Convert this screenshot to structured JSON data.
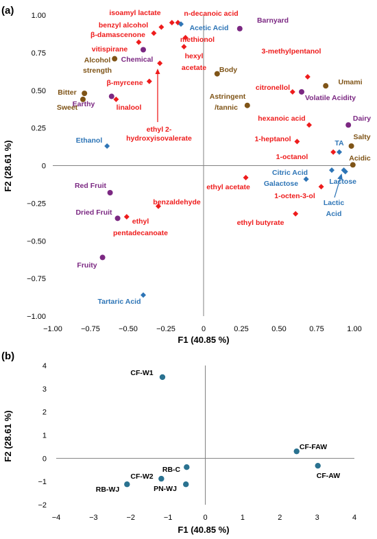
{
  "colors": {
    "compound": "#ee1c1c",
    "chemical": "#2e75b6",
    "aroma": "#7b2882",
    "taste": "#7f5417",
    "sample": "#2a7290",
    "axis": "#808080"
  },
  "chart_data": [
    {
      "type": "scatter",
      "panel": "(a)",
      "xlabel": "F1 (40.85 %)",
      "ylabel": "F2 (28.61 %)",
      "xlim": [
        -1,
        1
      ],
      "ylim": [
        -1,
        1
      ],
      "xticks": [
        "−1.00",
        "−0.75",
        "−0.50",
        "−0.25",
        "0",
        "0.25",
        "0.50",
        "0.75",
        "1.00"
      ],
      "yticks": [
        "1.00",
        "0.75",
        "0.50",
        "0.25",
        "0",
        "−0.25",
        "−0.50",
        "−0.75",
        "−1.00"
      ],
      "grid": false,
      "points": [
        {
          "label": "isoamyl lactate",
          "x": -0.21,
          "y": 0.95,
          "group": "compound",
          "marker": "diamond",
          "color": "#ee1c1c"
        },
        {
          "label": "n-decanoic acid",
          "x": -0.17,
          "y": 0.95,
          "group": "compound",
          "marker": "diamond",
          "color": "#ee1c1c"
        },
        {
          "label": "benzyl alcohol",
          "x": -0.28,
          "y": 0.92,
          "group": "compound",
          "marker": "diamond",
          "color": "#ee1c1c"
        },
        {
          "label": "β-damascenone",
          "x": -0.33,
          "y": 0.88,
          "group": "compound",
          "marker": "diamond",
          "color": "#ee1c1c"
        },
        {
          "label": "methionol",
          "x": -0.12,
          "y": 0.85,
          "group": "compound",
          "marker": "diamond",
          "color": "#ee1c1c"
        },
        {
          "label": "vitispirane",
          "x": -0.43,
          "y": 0.82,
          "group": "compound",
          "marker": "diamond",
          "color": "#ee1c1c"
        },
        {
          "label": "hexyl acetate",
          "x": -0.13,
          "y": 0.79,
          "group": "compound",
          "marker": "diamond",
          "color": "#ee1c1c"
        },
        {
          "label": "ethyl 2-hydroxyisovalerate",
          "x": -0.29,
          "y": 0.68,
          "group": "compound",
          "marker": "diamond",
          "color": "#ee1c1c"
        },
        {
          "label": "β-myrcene",
          "x": -0.36,
          "y": 0.56,
          "group": "compound",
          "marker": "diamond",
          "color": "#ee1c1c"
        },
        {
          "label": "linalool",
          "x": -0.58,
          "y": 0.44,
          "group": "compound",
          "marker": "diamond",
          "color": "#ee1c1c"
        },
        {
          "label": "3-methylpentanol",
          "x": 0.69,
          "y": 0.59,
          "group": "compound",
          "marker": "diamond",
          "color": "#ee1c1c"
        },
        {
          "label": "citronellol",
          "x": 0.59,
          "y": 0.49,
          "group": "compound",
          "marker": "diamond",
          "color": "#ee1c1c"
        },
        {
          "label": "hexanoic acid",
          "x": 0.7,
          "y": 0.27,
          "group": "compound",
          "marker": "diamond",
          "color": "#ee1c1c"
        },
        {
          "label": "1-heptanol",
          "x": 0.62,
          "y": 0.16,
          "group": "compound",
          "marker": "diamond",
          "color": "#ee1c1c"
        },
        {
          "label": "1-octanol",
          "x": 0.86,
          "y": 0.09,
          "group": "compound",
          "marker": "diamond",
          "color": "#ee1c1c"
        },
        {
          "label": "1-octen-3-ol",
          "x": 0.78,
          "y": -0.14,
          "group": "compound",
          "marker": "diamond",
          "color": "#ee1c1c"
        },
        {
          "label": "ethyl acetate",
          "x": 0.28,
          "y": -0.08,
          "group": "compound",
          "marker": "diamond",
          "color": "#ee1c1c"
        },
        {
          "label": "ethyl butyrate",
          "x": 0.61,
          "y": -0.32,
          "group": "compound",
          "marker": "diamond",
          "color": "#ee1c1c"
        },
        {
          "label": "benzaldehyde",
          "x": -0.3,
          "y": -0.27,
          "group": "compound",
          "marker": "diamond",
          "color": "#ee1c1c"
        },
        {
          "label": "ethyl pentadecanoate",
          "x": -0.51,
          "y": -0.34,
          "group": "compound",
          "marker": "diamond",
          "color": "#ee1c1c"
        },
        {
          "label": "Acetic Acid",
          "x": -0.15,
          "y": 0.94,
          "group": "chemical",
          "marker": "diamond",
          "color": "#2e75b6"
        },
        {
          "label": "Ethanol",
          "x": -0.64,
          "y": 0.13,
          "group": "chemical",
          "marker": "diamond",
          "color": "#2e75b6"
        },
        {
          "label": "TA",
          "x": 0.9,
          "y": 0.09,
          "group": "chemical",
          "marker": "diamond",
          "color": "#2e75b6"
        },
        {
          "label": "Citric Acid",
          "x": 0.85,
          "y": -0.03,
          "group": "chemical",
          "marker": "diamond",
          "color": "#2e75b6"
        },
        {
          "label": "Galactose",
          "x": 0.68,
          "y": -0.09,
          "group": "chemical",
          "marker": "diamond",
          "color": "#2e75b6"
        },
        {
          "label": "Lactose",
          "x": 0.94,
          "y": -0.04,
          "group": "chemical",
          "marker": "diamond",
          "color": "#2e75b6"
        },
        {
          "label": "Lactic Acid",
          "x": 0.93,
          "y": -0.03,
          "group": "chemical",
          "marker": "diamond",
          "color": "#2e75b6"
        },
        {
          "label": "Tartaric Acid",
          "x": -0.4,
          "y": -0.86,
          "group": "chemical",
          "marker": "diamond",
          "color": "#2e75b6"
        },
        {
          "label": "Barnyard",
          "x": 0.24,
          "y": 0.91,
          "group": "aroma",
          "marker": "circle",
          "color": "#7b2882"
        },
        {
          "label": "Chemical",
          "x": -0.4,
          "y": 0.77,
          "group": "aroma",
          "marker": "circle",
          "color": "#7b2882"
        },
        {
          "label": "Earthy",
          "x": -0.61,
          "y": 0.46,
          "group": "aroma",
          "marker": "circle",
          "color": "#7b2882"
        },
        {
          "label": "Volatile Acidity",
          "x": 0.65,
          "y": 0.49,
          "group": "aroma",
          "marker": "circle",
          "color": "#7b2882"
        },
        {
          "label": "Dairy",
          "x": 0.96,
          "y": 0.27,
          "group": "aroma",
          "marker": "circle",
          "color": "#7b2882"
        },
        {
          "label": "Red Fruit",
          "x": -0.62,
          "y": -0.18,
          "group": "aroma",
          "marker": "circle",
          "color": "#7b2882"
        },
        {
          "label": "Dried Fruit",
          "x": -0.57,
          "y": -0.35,
          "group": "aroma",
          "marker": "circle",
          "color": "#7b2882"
        },
        {
          "label": "Fruity",
          "x": -0.67,
          "y": -0.61,
          "group": "aroma",
          "marker": "circle",
          "color": "#7b2882"
        },
        {
          "label": "Alcohol strength",
          "x": -0.59,
          "y": 0.71,
          "group": "taste",
          "marker": "circle",
          "color": "#7f5417"
        },
        {
          "label": "Body",
          "x": 0.09,
          "y": 0.61,
          "group": "taste",
          "marker": "circle",
          "color": "#7f5417"
        },
        {
          "label": "Umami",
          "x": 0.81,
          "y": 0.53,
          "group": "taste",
          "marker": "circle",
          "color": "#7f5417"
        },
        {
          "label": "Bitter",
          "x": -0.79,
          "y": 0.48,
          "group": "taste",
          "marker": "circle",
          "color": "#7f5417"
        },
        {
          "label": "Sweet",
          "x": -0.8,
          "y": 0.44,
          "group": "taste",
          "marker": "circle",
          "color": "#7f5417"
        },
        {
          "label": "Astringent /tannic",
          "x": 0.29,
          "y": 0.4,
          "group": "taste",
          "marker": "circle",
          "color": "#7f5417"
        },
        {
          "label": "Salty",
          "x": 0.98,
          "y": 0.13,
          "group": "taste",
          "marker": "circle",
          "color": "#7f5417"
        },
        {
          "label": "Acidic",
          "x": 0.99,
          "y": 0.005,
          "group": "taste",
          "marker": "circle",
          "color": "#7f5417"
        }
      ]
    },
    {
      "type": "scatter",
      "panel": "(b)",
      "xlabel": "F1 (40.85 %)",
      "ylabel": "F2 (28.61 %)",
      "xlim": [
        -4,
        4
      ],
      "ylim": [
        -2,
        4
      ],
      "xticks": [
        "−4",
        "−3",
        "−2",
        "−1",
        "0",
        "1",
        "2",
        "3",
        "4"
      ],
      "yticks": [
        "4",
        "3",
        "2",
        "1",
        "0",
        "−1",
        "−2"
      ],
      "grid": false,
      "points": [
        {
          "label": "CF-W1",
          "x": -1.15,
          "y": 3.5,
          "color": "#2a7290"
        },
        {
          "label": "CF-FAW",
          "x": 2.45,
          "y": 0.3,
          "color": "#2a7290"
        },
        {
          "label": "CF-AW",
          "x": 3.02,
          "y": -0.32,
          "color": "#2a7290"
        },
        {
          "label": "RB-C",
          "x": -0.5,
          "y": -0.38,
          "color": "#2a7290"
        },
        {
          "label": "CF-W2",
          "x": -1.18,
          "y": -0.88,
          "color": "#2a7290"
        },
        {
          "label": "RB-WJ",
          "x": -2.1,
          "y": -1.12,
          "color": "#2a7290"
        },
        {
          "label": "PN-WJ",
          "x": -0.52,
          "y": -1.12,
          "color": "#2a7290"
        }
      ]
    }
  ]
}
